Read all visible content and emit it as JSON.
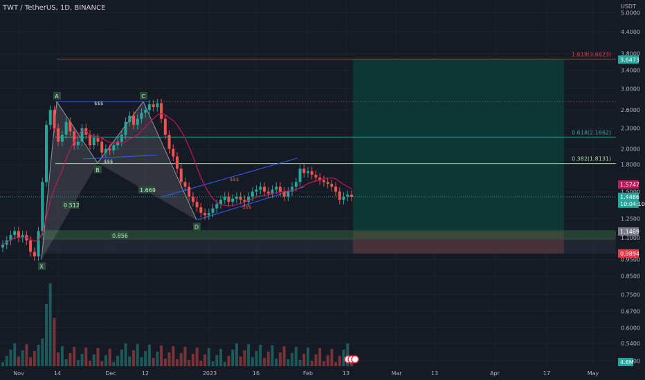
{
  "header": {
    "title": "TWT / TetherUS, 1D, BINANCE"
  },
  "axis": {
    "currency": "USDT",
    "price_ticks": [
      "5.0000",
      "4.4000",
      "3.8000",
      "3.4000",
      "3.0000",
      "2.6000",
      "2.3000",
      "2.0000",
      "1.8000",
      "1.5000",
      "1.2500",
      "1.1000",
      "0.9500",
      "0.8500",
      "0.7500",
      "0.6700",
      "0.6000",
      "0.5400",
      "0.4800"
    ],
    "time_ticks": [
      "Nov",
      "14",
      "Dec",
      "12",
      "2023",
      "16",
      "Feb",
      "13",
      "Mar",
      "13",
      "Apr",
      "17",
      "May"
    ]
  },
  "price_labels": {
    "target": "3.6473",
    "ma": "1.5747",
    "current": "1.4486",
    "countdown": "10:04:10",
    "entry": "1.1469",
    "stop": "0.9894",
    "volume": "4.6M"
  },
  "fib_levels": [
    {
      "label": "1.618(3.6623)",
      "price": 3.6623,
      "color": "#f23645"
    },
    {
      "label": "0.618(2.1662)",
      "price": 2.1662,
      "color": "#26a69a"
    },
    {
      "label": "0.382(1.8131)",
      "price": 1.8131,
      "color": "#a5d6a7"
    }
  ],
  "pattern": {
    "points": [
      {
        "label": "X",
        "time": "Nov 8",
        "price": 0.95
      },
      {
        "label": "A",
        "time": "Nov 14",
        "price": 2.75
      },
      {
        "label": "B",
        "time": "Nov 30",
        "price": 1.82
      },
      {
        "label": "C",
        "time": "Dec 12",
        "price": 2.75
      },
      {
        "label": "D",
        "time": "Dec 30",
        "price": 1.24
      }
    ],
    "ratios": [
      "0.512",
      "1.669",
      "0.856"
    ],
    "liquidity_labels": [
      "$$$",
      "$$$",
      "$$$",
      "$$$"
    ]
  },
  "colors": {
    "up": "#26a69a",
    "down": "#ef5350",
    "target_zone": "#0d3a36",
    "stop_zone": "#5a2a30",
    "ma": "#c2185b"
  },
  "chart_data": {
    "type": "candlestick",
    "title": "TWT / TetherUS, 1D, BINANCE",
    "y_scale": "log",
    "ylim": [
      0.48,
      5.0
    ],
    "xlabel": "",
    "ylabel": "",
    "closes": [
      1.05,
      1.08,
      1.12,
      1.15,
      1.1,
      1.12,
      1.08,
      1.0,
      0.97,
      1.15,
      1.6,
      2.35,
      2.6,
      2.3,
      2.1,
      2.2,
      2.4,
      2.25,
      2.05,
      2.1,
      2.3,
      2.2,
      2.05,
      2.15,
      2.1,
      1.95,
      2.0,
      1.98,
      2.05,
      2.1,
      2.2,
      2.4,
      2.5,
      2.35,
      2.45,
      2.55,
      2.6,
      2.7,
      2.65,
      2.72,
      2.45,
      2.2,
      2.0,
      1.9,
      1.75,
      1.6,
      1.55,
      1.45,
      1.4,
      1.35,
      1.3,
      1.28,
      1.3,
      1.34,
      1.38,
      1.42,
      1.45,
      1.4,
      1.43,
      1.45,
      1.42,
      1.4,
      1.45,
      1.5,
      1.52,
      1.55,
      1.5,
      1.48,
      1.52,
      1.55,
      1.5,
      1.45,
      1.5,
      1.55,
      1.6,
      1.75,
      1.7,
      1.72,
      1.68,
      1.65,
      1.62,
      1.6,
      1.58,
      1.55,
      1.5,
      1.42,
      1.45,
      1.47,
      1.4486
    ],
    "volume_unit": "M",
    "current_price": 1.4486,
    "entry": 1.1469,
    "target": 3.6473,
    "stop": 0.9894
  }
}
